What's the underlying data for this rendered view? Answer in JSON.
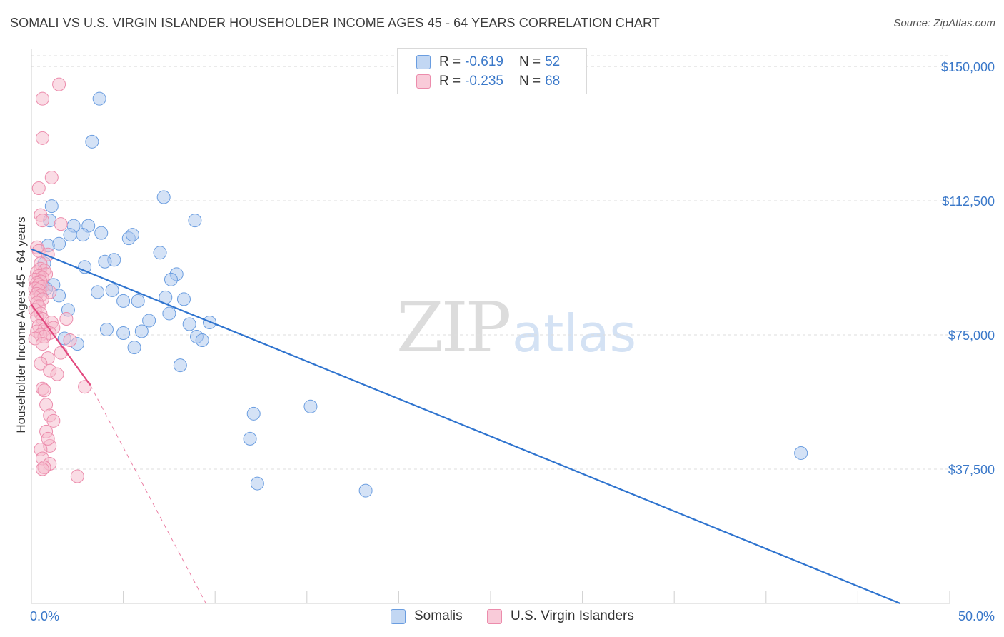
{
  "title": "SOMALI VS U.S. VIRGIN ISLANDER HOUSEHOLDER INCOME AGES 45 - 64 YEARS CORRELATION CHART",
  "source": "Source: ZipAtlas.com",
  "watermark": {
    "zip": "ZIP",
    "atlas": "atlas"
  },
  "legend": {
    "r_label": "R =",
    "n_label": "N =",
    "rows": [
      {
        "r": "-0.619",
        "n": "52"
      },
      {
        "r": "-0.235",
        "n": "68"
      }
    ]
  },
  "bottom_legend": [
    "Somalis",
    "U.S. Virgin Islanders"
  ],
  "chart_data": {
    "type": "scatter",
    "title": "SOMALI VS U.S. VIRGIN ISLANDER HOUSEHOLDER INCOME AGES 45 - 64 YEARS CORRELATION CHART",
    "xlabel": "",
    "ylabel": "Householder Income Ages 45 - 64 years",
    "xlim": [
      0,
      50
    ],
    "ylim": [
      0,
      155000
    ],
    "x_tick_labels": [
      "0.0%",
      "50.0%"
    ],
    "y_ticks": [
      {
        "value": 37500,
        "label": "$37,500"
      },
      {
        "value": 75000,
        "label": "$75,000"
      },
      {
        "value": 112500,
        "label": "$112,500"
      },
      {
        "value": 150000,
        "label": "$150,000"
      }
    ],
    "grid": true,
    "legend_position": "top-center",
    "series": [
      {
        "name": "Somalis",
        "color": "#a9c6ee",
        "stroke": "#6a9de0",
        "trend_color": "#2f74cf",
        "trend": {
          "x": [
            0.0,
            47.3
          ],
          "y": [
            99000,
            0
          ]
        },
        "points": [
          [
            1.1,
            111000
          ],
          [
            3.7,
            141000
          ],
          [
            3.3,
            129000
          ],
          [
            7.2,
            113500
          ],
          [
            8.9,
            107000
          ],
          [
            1.0,
            107000
          ],
          [
            2.3,
            105500
          ],
          [
            3.1,
            105500
          ],
          [
            1.5,
            100500
          ],
          [
            0.9,
            100000
          ],
          [
            2.1,
            103000
          ],
          [
            2.8,
            103000
          ],
          [
            3.8,
            103500
          ],
          [
            5.3,
            102000
          ],
          [
            5.5,
            103000
          ],
          [
            7.0,
            98000
          ],
          [
            4.5,
            96000
          ],
          [
            4.0,
            95500
          ],
          [
            2.9,
            94000
          ],
          [
            7.9,
            92000
          ],
          [
            7.6,
            90500
          ],
          [
            1.2,
            89000
          ],
          [
            0.8,
            88000
          ],
          [
            3.6,
            87000
          ],
          [
            4.4,
            87500
          ],
          [
            1.5,
            86000
          ],
          [
            7.3,
            85500
          ],
          [
            8.3,
            85000
          ],
          [
            5.0,
            84500
          ],
          [
            5.8,
            84500
          ],
          [
            2.0,
            82000
          ],
          [
            7.5,
            81000
          ],
          [
            6.4,
            79000
          ],
          [
            9.7,
            78500
          ],
          [
            8.6,
            78000
          ],
          [
            4.1,
            76500
          ],
          [
            6.0,
            76000
          ],
          [
            5.0,
            75500
          ],
          [
            9.0,
            74500
          ],
          [
            9.3,
            73500
          ],
          [
            1.8,
            74000
          ],
          [
            2.5,
            72500
          ],
          [
            5.6,
            71500
          ],
          [
            8.1,
            66500
          ],
          [
            12.1,
            53000
          ],
          [
            15.2,
            55000
          ],
          [
            11.9,
            46000
          ],
          [
            41.9,
            42000
          ],
          [
            12.3,
            33500
          ],
          [
            18.2,
            31500
          ],
          [
            0.5,
            88000
          ],
          [
            0.7,
            95000
          ]
        ]
      },
      {
        "name": "U.S. Virgin Islanders",
        "color": "#f6b9cc",
        "stroke": "#ec8cac",
        "trend_color": "#e2487e",
        "trend": {
          "x": [
            0.0,
            3.2
          ],
          "y": [
            83500,
            61000
          ]
        },
        "trend_ext": {
          "x": [
            3.2,
            9.5
          ],
          "y": [
            61000,
            0
          ]
        },
        "points": [
          [
            1.5,
            145000
          ],
          [
            0.6,
            141000
          ],
          [
            0.6,
            130000
          ],
          [
            1.1,
            119000
          ],
          [
            0.4,
            116000
          ],
          [
            0.5,
            108500
          ],
          [
            0.6,
            107000
          ],
          [
            1.6,
            106000
          ],
          [
            0.3,
            99500
          ],
          [
            0.4,
            98500
          ],
          [
            0.9,
            97500
          ],
          [
            0.5,
            95000
          ],
          [
            0.5,
            93500
          ],
          [
            0.7,
            93000
          ],
          [
            0.3,
            92500
          ],
          [
            0.8,
            92000
          ],
          [
            0.4,
            91500
          ],
          [
            0.6,
            91000
          ],
          [
            0.2,
            90500
          ],
          [
            0.5,
            90000
          ],
          [
            0.3,
            89500
          ],
          [
            0.4,
            89000
          ],
          [
            0.6,
            88500
          ],
          [
            0.2,
            88000
          ],
          [
            0.4,
            87500
          ],
          [
            1.0,
            87000
          ],
          [
            0.3,
            86500
          ],
          [
            0.5,
            86000
          ],
          [
            0.2,
            85500
          ],
          [
            0.6,
            85000
          ],
          [
            0.3,
            84000
          ],
          [
            0.4,
            83000
          ],
          [
            0.2,
            82000
          ],
          [
            0.5,
            81000
          ],
          [
            0.3,
            80000
          ],
          [
            0.6,
            79500
          ],
          [
            1.9,
            79500
          ],
          [
            1.1,
            78500
          ],
          [
            0.4,
            77500
          ],
          [
            1.2,
            77000
          ],
          [
            0.7,
            76500
          ],
          [
            0.3,
            76000
          ],
          [
            1.0,
            75500
          ],
          [
            0.5,
            75000
          ],
          [
            0.7,
            74500
          ],
          [
            0.2,
            74000
          ],
          [
            2.1,
            73500
          ],
          [
            0.6,
            72500
          ],
          [
            1.6,
            70000
          ],
          [
            0.9,
            68500
          ],
          [
            0.5,
            67000
          ],
          [
            1.0,
            65000
          ],
          [
            1.4,
            64000
          ],
          [
            2.9,
            60500
          ],
          [
            0.6,
            60000
          ],
          [
            0.7,
            59500
          ],
          [
            0.8,
            55500
          ],
          [
            1.0,
            52500
          ],
          [
            1.2,
            51000
          ],
          [
            0.8,
            48000
          ],
          [
            1.0,
            44000
          ],
          [
            0.5,
            43000
          ],
          [
            0.6,
            40500
          ],
          [
            1.0,
            39000
          ],
          [
            0.7,
            38000
          ],
          [
            2.5,
            35500
          ],
          [
            0.6,
            37500
          ],
          [
            0.9,
            46000
          ]
        ]
      }
    ]
  }
}
